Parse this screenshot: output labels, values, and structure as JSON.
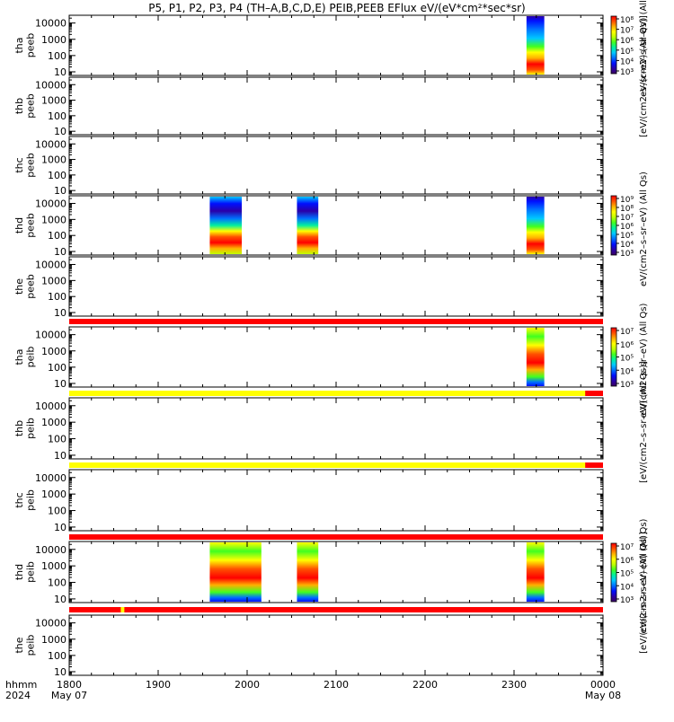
{
  "title": "P5, P1, P2, P3, P4 (TH–A,B,C,D,E) PEIB,PEEB EFlux eV/(eV*cm²*sec*sr)",
  "colors": {
    "spectrum": [
      "#3a0060",
      "#2a00a8",
      "#0010ff",
      "#0070ff",
      "#00c8ff",
      "#00f0a0",
      "#40ff20",
      "#c0ff00",
      "#ffff00",
      "#ffb000",
      "#ff5000",
      "#ff0000"
    ],
    "bar_red": "#ff0000",
    "bar_yellow": "#ffff00",
    "black": "#000000"
  },
  "chart_data": {
    "type": "heatmap",
    "x_axis": {
      "range_hours": [
        18,
        24
      ],
      "ticks": [
        {
          "value": 18,
          "label": "1800",
          "sublabel": "May 07"
        },
        {
          "value": 19,
          "label": "1900",
          "sublabel": ""
        },
        {
          "value": 20,
          "label": "2000",
          "sublabel": ""
        },
        {
          "value": 21,
          "label": "2100",
          "sublabel": ""
        },
        {
          "value": 22,
          "label": "2200",
          "sublabel": ""
        },
        {
          "value": 23,
          "label": "2300",
          "sublabel": ""
        },
        {
          "value": 24,
          "label": "0000",
          "sublabel": "May 08"
        }
      ],
      "row_labels": [
        "hhmm",
        "2024"
      ]
    },
    "y_axis": {
      "scale": "log",
      "range": [
        6,
        30000
      ],
      "tick_values": [
        10,
        100,
        1000,
        10000
      ],
      "tick_labels": [
        "10",
        "100",
        "1000",
        "10000"
      ]
    },
    "panels": [
      {
        "label1": "tha",
        "label2": "peeb",
        "data": [
          {
            "start": 23.14,
            "end": 23.34,
            "profile": "electron"
          }
        ],
        "flag_bar": null
      },
      {
        "label1": "thb",
        "label2": "peeb",
        "data": [],
        "flag_bar": null
      },
      {
        "label1": "thc",
        "label2": "peeb",
        "data": [],
        "flag_bar": null
      },
      {
        "label1": "thd",
        "label2": "peeb",
        "data": [
          {
            "start": 19.58,
            "end": 19.94,
            "profile": "electron_wide"
          },
          {
            "start": 20.56,
            "end": 20.8,
            "profile": "electron_wide"
          },
          {
            "start": 23.14,
            "end": 23.34,
            "profile": "electron"
          }
        ],
        "flag_bar": null
      },
      {
        "label1": "the",
        "label2": "peeb",
        "data": [],
        "flag_bar": {
          "color": "red",
          "segments": []
        }
      },
      {
        "label1": "tha",
        "label2": "peib",
        "data": [
          {
            "start": 23.14,
            "end": 23.34,
            "profile": "ion"
          }
        ],
        "flag_bar": {
          "color": "yellow",
          "segments": [
            {
              "start": 23.8,
              "end": 24.0,
              "color": "red"
            }
          ]
        }
      },
      {
        "label1": "thb",
        "label2": "peib",
        "data": [],
        "flag_bar": {
          "color": "yellow",
          "segments": [
            {
              "start": 23.8,
              "end": 24.0,
              "color": "red"
            }
          ]
        }
      },
      {
        "label1": "thc",
        "label2": "peib",
        "data": [],
        "flag_bar": {
          "color": "red",
          "segments": []
        }
      },
      {
        "label1": "thd",
        "label2": "peib",
        "data": [
          {
            "start": 19.58,
            "end": 20.16,
            "profile": "ion"
          },
          {
            "start": 20.56,
            "end": 20.8,
            "profile": "ion"
          },
          {
            "start": 23.14,
            "end": 23.34,
            "profile": "ion"
          }
        ],
        "flag_bar": {
          "color": "red",
          "segments": [
            {
              "start": 18.58,
              "end": 18.62,
              "color": "yellow"
            }
          ]
        }
      },
      {
        "label1": "the",
        "label2": "peib",
        "data": [],
        "flag_bar": null
      }
    ],
    "colorbars": [
      {
        "tick_labels": [
          "10⁸",
          "10⁷",
          "10⁶",
          "10⁵",
          "10⁴",
          "10³"
        ],
        "title": "eV/(cm2–s–sr–eV)  (All"
      },
      {
        "tick_labels": [
          "10⁹",
          "10⁸",
          "10⁷",
          "10⁶",
          "10⁵",
          "10⁴",
          "10³"
        ],
        "title": "eV/(cm2–s–sr–eV)  (All Qs)"
      },
      {
        "tick_labels": [
          "10⁷",
          "10⁶",
          "10⁵",
          "10⁴",
          "10³"
        ],
        "title": "eV/(cm2–s–sr–eV)  (All Qs)"
      },
      {
        "tick_labels": [
          "10⁷",
          "10⁶",
          "10⁵",
          "10⁴",
          "10³"
        ],
        "title": "eV/(cm2–s–sr–eV)  (All Qs)"
      }
    ],
    "side_labels": [
      "[eV/(cm2–s–sr–eV)  (All Qs)]",
      "[eV/(cm2–s–sr–eV)  (All Qs)]",
      "[eV/(cm2–s–sr–eV)  (All Qs)]"
    ]
  }
}
